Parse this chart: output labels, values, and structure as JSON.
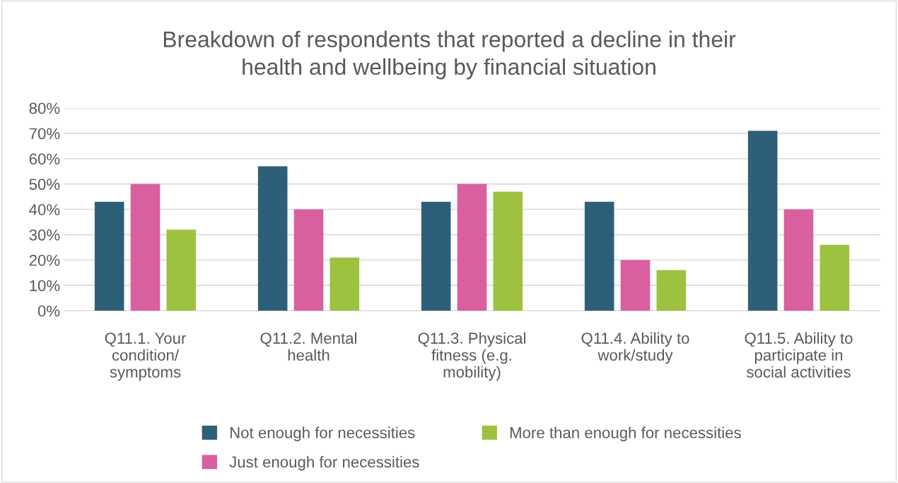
{
  "chart_data": {
    "type": "bar",
    "title": "Breakdown of respondents that reported a decline in their\nhealth and wellbeing by financial situation",
    "categories": [
      "Q11.1. Your\ncondition/\nsymptoms",
      "Q11.2. Mental\nhealth",
      "Q11.3. Physical\nfitness (e.g.\nmobility)",
      "Q11.4. Ability to\nwork/study",
      "Q11.5. Ability to\nparticipate in\nsocial activities"
    ],
    "series": [
      {
        "name": "Not enough for necessities",
        "color": "#2e5f78",
        "values": [
          43,
          57,
          43,
          43,
          71
        ]
      },
      {
        "name": "Just enough for necessities",
        "color": "#d95f9f",
        "values": [
          50,
          40,
          50,
          20,
          40
        ]
      },
      {
        "name": "More than enough for necessities",
        "color": "#9dc23f",
        "values": [
          32,
          21,
          47,
          16,
          26
        ]
      }
    ],
    "ylim": [
      0,
      80
    ],
    "yticks": [
      {
        "value": 0,
        "label": "0%"
      },
      {
        "value": 10,
        "label": "10%"
      },
      {
        "value": 20,
        "label": "20%"
      },
      {
        "value": 30,
        "label": "30%"
      },
      {
        "value": 40,
        "label": "40%"
      },
      {
        "value": 50,
        "label": "50%"
      },
      {
        "value": 60,
        "label": "60%"
      },
      {
        "value": 70,
        "label": "70%"
      },
      {
        "value": 80,
        "label": "80%"
      }
    ],
    "grid": "y",
    "legend": "bottom"
  }
}
